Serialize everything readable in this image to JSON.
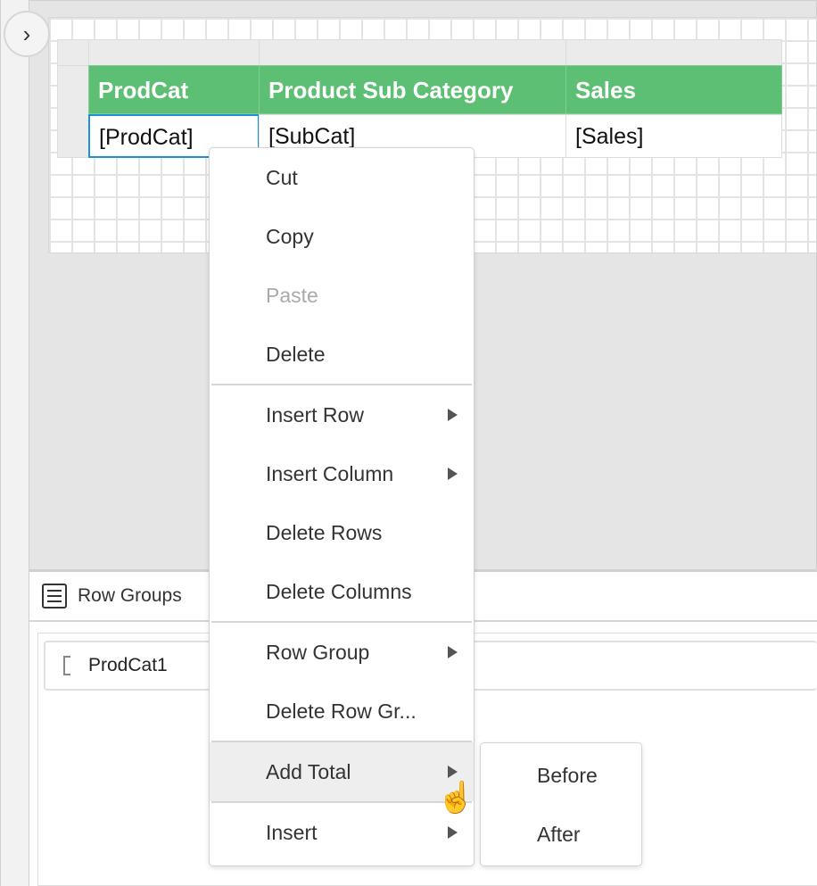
{
  "toggle": {
    "icon": "chevron-right-icon",
    "glyph": "›"
  },
  "table": {
    "headers": [
      "ProdCat",
      "Product Sub Category",
      "Sales"
    ],
    "row": [
      "[ProdCat]",
      "[SubCat]",
      "[Sales]"
    ],
    "header_color": "#5dbf74"
  },
  "row_groups": {
    "title": "Row Groups",
    "items": [
      "ProdCat1"
    ]
  },
  "context_menu": {
    "items": [
      {
        "label": "Cut"
      },
      {
        "label": "Copy"
      },
      {
        "label": "Paste",
        "disabled": true
      },
      {
        "label": "Delete"
      },
      {
        "label": "Insert Row",
        "submenu": true
      },
      {
        "label": "Insert Column",
        "submenu": true
      },
      {
        "label": "Delete Rows"
      },
      {
        "label": "Delete Columns"
      },
      {
        "label": "Row Group",
        "submenu": true
      },
      {
        "label": "Delete Row Gr..."
      },
      {
        "label": "Add Total",
        "submenu": true,
        "highlighted": true
      },
      {
        "label": "Insert",
        "submenu": true
      }
    ]
  },
  "submenu": {
    "items": [
      "Before",
      "After"
    ]
  }
}
